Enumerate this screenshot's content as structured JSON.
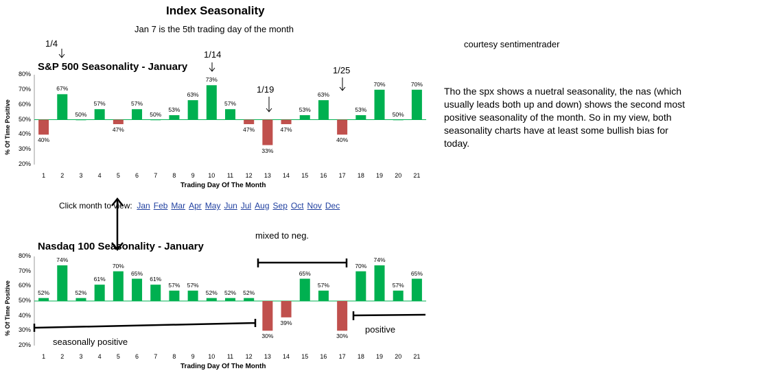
{
  "header": {
    "title": "Index Seasonality",
    "subtitle": "Jan 7 is the 5th trading day of the month"
  },
  "courtesy": "courtesy sentimentrader",
  "commentary": "Tho the spx shows a nuetral seasonality, the nas (which usually leads both up and down) shows the second most positive seasonality of the month. So in my view, both seasonality charts have at least some bullish bias for today.",
  "month_links": {
    "prompt": "Click month to view:",
    "months": [
      "Jan",
      "Feb",
      "Mar",
      "Apr",
      "May",
      "Jun",
      "Jul",
      "Aug",
      "Sep",
      "Oct",
      "Nov",
      "Dec"
    ]
  },
  "annotations": {
    "sp": [
      "1/4",
      "1/14",
      "1/19",
      "1/25"
    ],
    "nasdaq": [
      "mixed to neg.",
      "seasonally positive",
      "positive"
    ]
  },
  "colors": {
    "positive": "#00b050",
    "negative": "#c0504d",
    "grid_line": "#00b050"
  },
  "chart_data": [
    {
      "type": "bar",
      "title": "S&P 500 Seasonality - January",
      "xlabel": "Trading Day Of The Month",
      "ylabel": "% Of Time Positive",
      "ylim": [
        20,
        80
      ],
      "yticks": [
        "20%",
        "30%",
        "40%",
        "50%",
        "60%",
        "70%",
        "80%"
      ],
      "baseline": 50,
      "categories": [
        "1",
        "2",
        "3",
        "4",
        "5",
        "6",
        "7",
        "8",
        "9",
        "10",
        "11",
        "12",
        "13",
        "14",
        "15",
        "16",
        "17",
        "18",
        "19",
        "20",
        "21"
      ],
      "values": [
        40,
        67,
        50,
        57,
        47,
        57,
        50,
        53,
        63,
        73,
        57,
        47,
        33,
        47,
        53,
        63,
        40,
        53,
        70,
        50,
        70
      ],
      "labels": [
        "40%",
        "67%",
        "50%",
        "57%",
        "47%",
        "57%",
        "50%",
        "53%",
        "63%",
        "73%",
        "57%",
        "47%",
        "33%",
        "47%",
        "53%",
        "63%",
        "40%",
        "53%",
        "70%",
        "50%",
        "70%"
      ]
    },
    {
      "type": "bar",
      "title": "Nasdaq 100 Seasonality - January",
      "xlabel": "Trading Day Of The Month",
      "ylabel": "% Of Time Positive",
      "ylim": [
        20,
        80
      ],
      "yticks": [
        "20%",
        "30%",
        "40%",
        "50%",
        "60%",
        "70%",
        "80%"
      ],
      "baseline": 50,
      "categories": [
        "1",
        "2",
        "3",
        "4",
        "5",
        "6",
        "7",
        "8",
        "9",
        "10",
        "11",
        "12",
        "13",
        "14",
        "15",
        "16",
        "17",
        "18",
        "19",
        "20",
        "21"
      ],
      "values": [
        52,
        74,
        52,
        61,
        70,
        65,
        61,
        57,
        57,
        52,
        52,
        52,
        30,
        39,
        65,
        57,
        30,
        70,
        74,
        57,
        65
      ],
      "labels": [
        "52%",
        "74%",
        "52%",
        "61%",
        "70%",
        "65%",
        "61%",
        "57%",
        "57%",
        "52%",
        "52%",
        "52%",
        "30%",
        "39%",
        "65%",
        "57%",
        "30%",
        "70%",
        "74%",
        "57%",
        "65%"
      ]
    }
  ]
}
